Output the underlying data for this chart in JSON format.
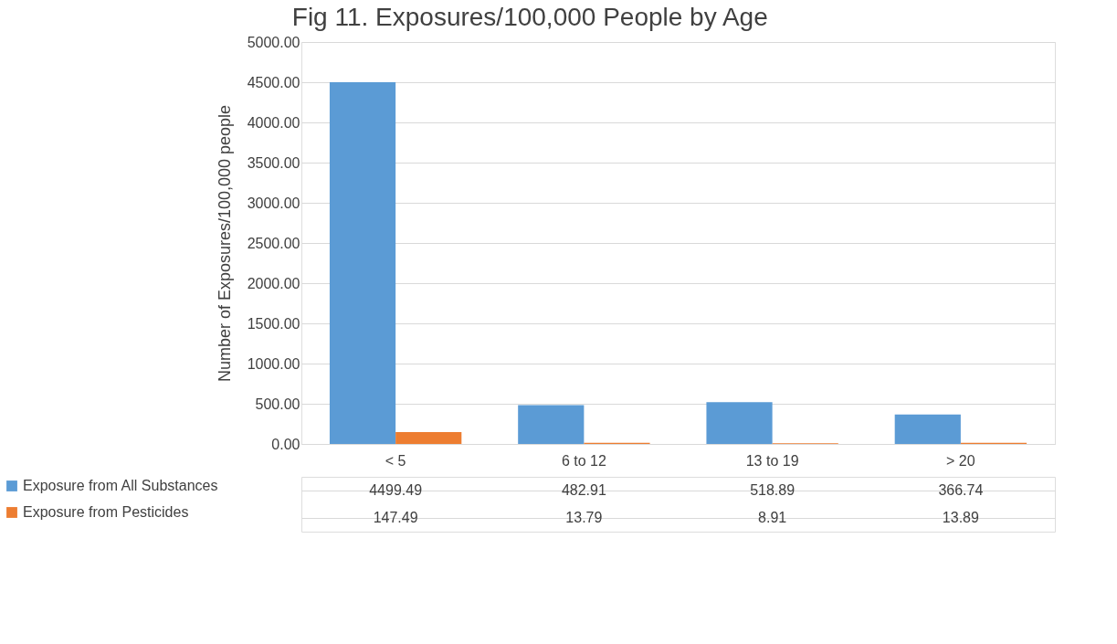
{
  "chart_data": {
    "type": "bar",
    "title": "Fig 11. Exposures/100,000 People by Age",
    "ylabel": "Number of Exposures/100,000 people",
    "categories": [
      "< 5",
      "6 to 12",
      "13 to 19",
      "> 20"
    ],
    "series": [
      {
        "name": "Exposure from All Substances",
        "color": "#5b9bd5",
        "values": [
          4499.49,
          482.91,
          518.89,
          366.74
        ]
      },
      {
        "name": "Exposure from Pesticides",
        "color": "#ed7d31",
        "values": [
          147.49,
          13.79,
          8.91,
          13.89
        ]
      }
    ],
    "ylim": [
      0,
      5000
    ],
    "yticks": [
      {
        "value": 0,
        "label": "0.00"
      },
      {
        "value": 500,
        "label": "500.00"
      },
      {
        "value": 1000,
        "label": "1000.00"
      },
      {
        "value": 1500,
        "label": "1500.00"
      },
      {
        "value": 2000,
        "label": "2000.00"
      },
      {
        "value": 2500,
        "label": "2500.00"
      },
      {
        "value": 3000,
        "label": "3000.00"
      },
      {
        "value": 3500,
        "label": "3500.00"
      },
      {
        "value": 4000,
        "label": "4000.00"
      },
      {
        "value": 4500,
        "label": "4500.00"
      },
      {
        "value": 5000,
        "label": "5000.00"
      }
    ],
    "grid": "y",
    "legend": "bottom",
    "data_labels": true
  }
}
